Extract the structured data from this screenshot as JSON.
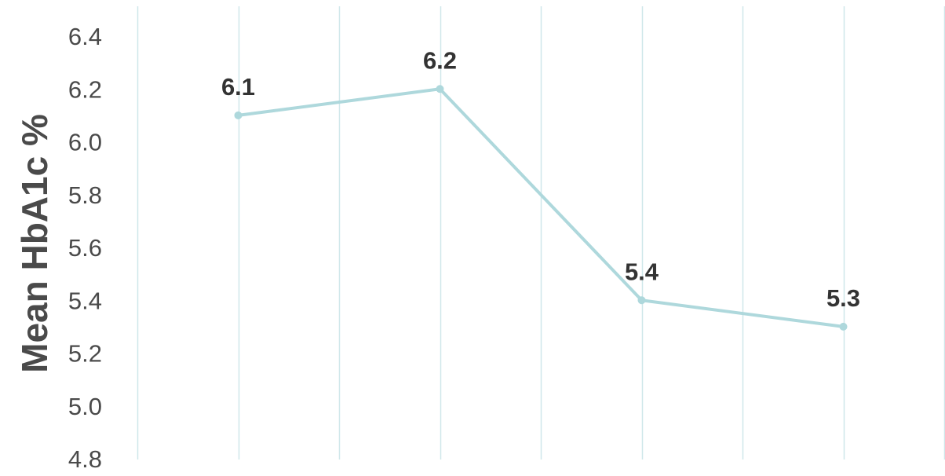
{
  "chart_data": {
    "type": "line",
    "title": "",
    "xlabel": "",
    "ylabel": "Mean HbA1c %",
    "ylim": [
      4.8,
      6.4
    ],
    "y_ticks": [
      4.8,
      5.0,
      5.2,
      5.4,
      5.6,
      5.8,
      6.0,
      6.2,
      6.4
    ],
    "grid": {
      "vertical": true,
      "horizontal": false
    },
    "legend": "none",
    "points": [
      {
        "x_index": 1,
        "value": 6.1,
        "label": "6.1"
      },
      {
        "x_index": 3,
        "value": 6.2,
        "label": "6.2"
      },
      {
        "x_index": 5,
        "value": 5.4,
        "label": "5.4"
      },
      {
        "x_index": 7,
        "value": 5.3,
        "label": "5.3"
      }
    ],
    "series": [
      {
        "values": [
          6.1,
          6.2,
          5.4,
          5.3
        ],
        "color": "#aed8dc"
      }
    ],
    "colors": {
      "line": "#aed8dc",
      "marker": "#aed8dc",
      "gridline": "#cfe7ea",
      "tick_text": "#4a4a4a",
      "data_label_text": "#333333"
    }
  }
}
